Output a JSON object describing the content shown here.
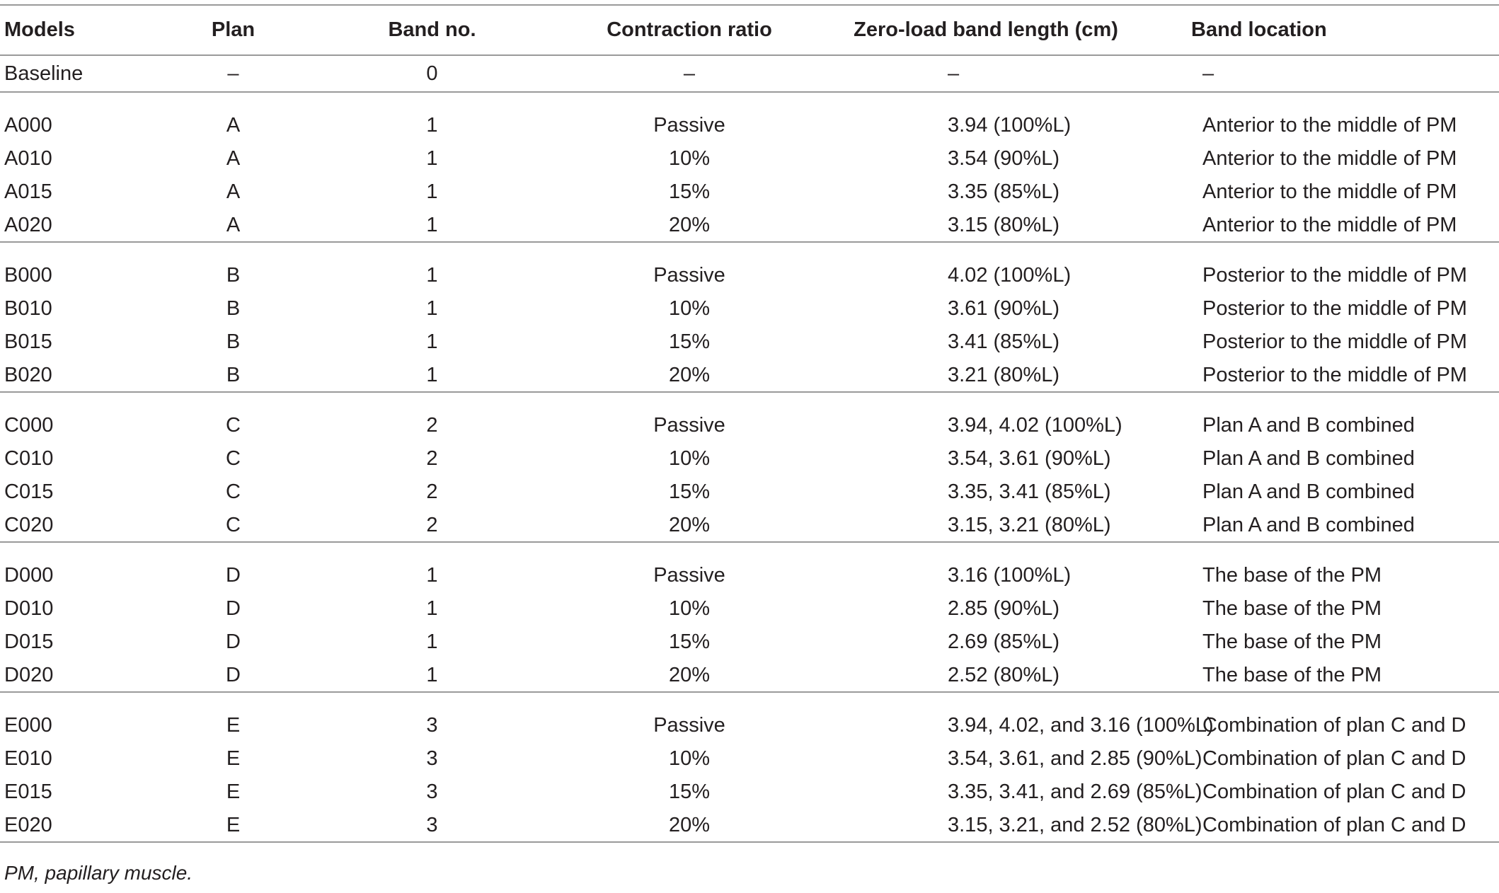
{
  "table": {
    "headers": [
      "Models",
      "Plan",
      "Band no.",
      "Contraction ratio",
      "Zero-load band length (cm)",
      "Band location"
    ],
    "groups": [
      {
        "rows": [
          [
            "Baseline",
            "–",
            "0",
            "–",
            "–",
            "–"
          ]
        ]
      },
      {
        "rows": [
          [
            "A000",
            "A",
            "1",
            "Passive",
            "3.94 (100%L)",
            "Anterior to the middle of PM"
          ],
          [
            "A010",
            "A",
            "1",
            "10%",
            "3.54 (90%L)",
            "Anterior to the middle of PM"
          ],
          [
            "A015",
            "A",
            "1",
            "15%",
            "3.35 (85%L)",
            "Anterior to the middle of PM"
          ],
          [
            "A020",
            "A",
            "1",
            "20%",
            "3.15 (80%L)",
            "Anterior to the middle of PM"
          ]
        ]
      },
      {
        "rows": [
          [
            "B000",
            "B",
            "1",
            "Passive",
            "4.02 (100%L)",
            "Posterior to the middle of PM"
          ],
          [
            "B010",
            "B",
            "1",
            "10%",
            "3.61 (90%L)",
            "Posterior to the middle of PM"
          ],
          [
            "B015",
            "B",
            "1",
            "15%",
            "3.41 (85%L)",
            "Posterior to the middle of PM"
          ],
          [
            "B020",
            "B",
            "1",
            "20%",
            "3.21 (80%L)",
            "Posterior to the middle of PM"
          ]
        ]
      },
      {
        "rows": [
          [
            "C000",
            "C",
            "2",
            "Passive",
            "3.94, 4.02 (100%L)",
            "Plan A and B combined"
          ],
          [
            "C010",
            "C",
            "2",
            "10%",
            "3.54, 3.61 (90%L)",
            "Plan A and B combined"
          ],
          [
            "C015",
            "C",
            "2",
            "15%",
            "3.35, 3.41 (85%L)",
            "Plan A and B combined"
          ],
          [
            "C020",
            "C",
            "2",
            "20%",
            "3.15, 3.21 (80%L)",
            "Plan A and B combined"
          ]
        ]
      },
      {
        "rows": [
          [
            "D000",
            "D",
            "1",
            "Passive",
            "3.16 (100%L)",
            "The base of the PM"
          ],
          [
            "D010",
            "D",
            "1",
            "10%",
            "2.85 (90%L)",
            "The base of the PM"
          ],
          [
            "D015",
            "D",
            "1",
            "15%",
            "2.69 (85%L)",
            "The base of the PM"
          ],
          [
            "D020",
            "D",
            "1",
            "20%",
            "2.52 (80%L)",
            "The base of the PM"
          ]
        ]
      },
      {
        "rows": [
          [
            "E000",
            "E",
            "3",
            "Passive",
            "3.94, 4.02, and 3.16 (100%L)",
            "Combination of plan C and D"
          ],
          [
            "E010",
            "E",
            "3",
            "10%",
            "3.54, 3.61, and 2.85 (90%L)",
            "Combination of plan C and D"
          ],
          [
            "E015",
            "E",
            "3",
            "15%",
            "3.35, 3.41, and 2.69 (85%L)",
            "Combination of plan C and D"
          ],
          [
            "E020",
            "E",
            "3",
            "20%",
            "3.15, 3.21, and 2.52 (80%L)",
            "Combination of plan C and D"
          ]
        ]
      }
    ]
  },
  "footnote": "PM, papillary muscle."
}
